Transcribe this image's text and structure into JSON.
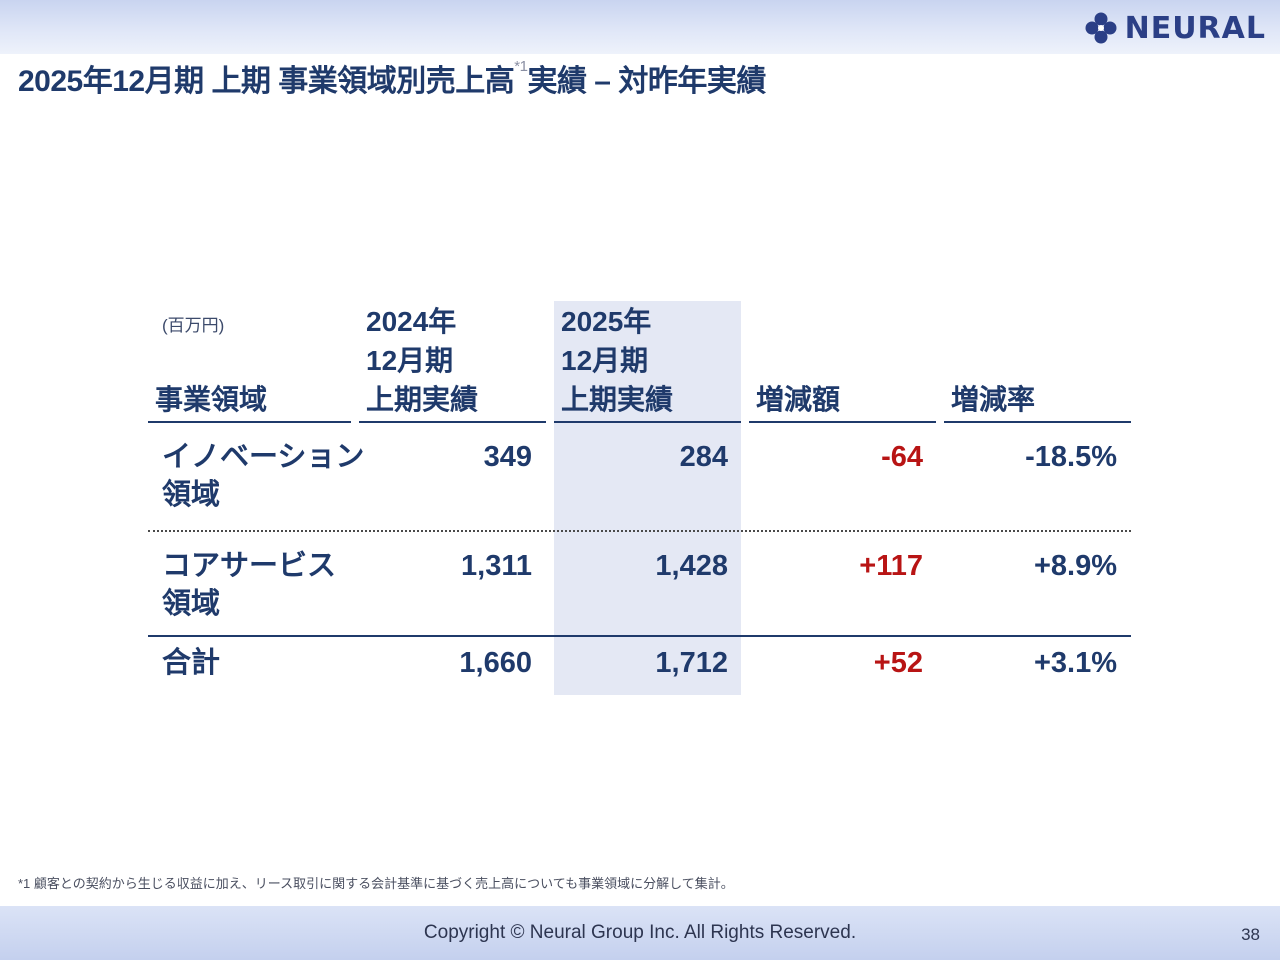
{
  "header": {
    "logo_text": "NEURAL",
    "title_main": "2025年12月期 上期 事業領域別売上高",
    "title_sup": "*1",
    "title_tail": "実績 – 対昨年実績"
  },
  "table": {
    "unit": "(百万円)",
    "headers": {
      "segment": "事業領域",
      "prev": [
        "2024年",
        "12月期",
        "上期実績"
      ],
      "curr": [
        "2025年",
        "12月期",
        "上期実績"
      ],
      "change": "増減額",
      "rate": "増減率"
    },
    "rows": [
      {
        "label": [
          "イノベーション",
          "領域"
        ],
        "prev": "349",
        "curr": "284",
        "change": "-64",
        "rate": "-18.5%"
      },
      {
        "label": [
          "コアサービス",
          "領域"
        ],
        "prev": "1,311",
        "curr": "1,428",
        "change": "+117",
        "rate": "+8.9%"
      },
      {
        "label": [
          "合計"
        ],
        "prev": "1,660",
        "curr": "1,712",
        "change": "+52",
        "rate": "+3.1%"
      }
    ]
  },
  "footnote": "*1 顧客との契約から生じる収益に加え、リース取引に関する会計基準に基づく売上高についても事業領域に分解して集計。",
  "footer": {
    "copyright": "Copyright © Neural Group Inc. All Rights Reserved.",
    "page_number": "38"
  },
  "colors": {
    "navy": "#1f3a6b",
    "red": "#b81414",
    "highlight": "#e4e8f4"
  }
}
